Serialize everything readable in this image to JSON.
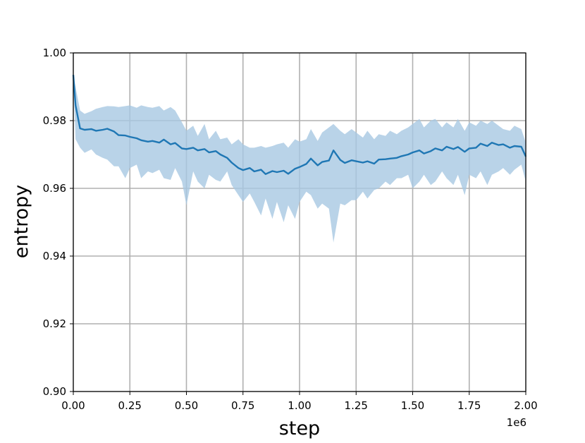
{
  "chart_data": {
    "type": "line",
    "title": "",
    "xlabel": "step",
    "ylabel": "entropy",
    "x_multiplier_label": "1e6",
    "xlim": [
      0,
      2
    ],
    "ylim": [
      0.9,
      1.0
    ],
    "xticks": [
      "0.00",
      "0.25",
      "0.50",
      "0.75",
      "1.00",
      "1.25",
      "1.50",
      "1.75",
      "2.00"
    ],
    "yticks": [
      "0.90",
      "0.92",
      "0.94",
      "0.96",
      "0.98",
      "1.00"
    ],
    "grid": true,
    "legend": "none",
    "colors": {
      "line": "#1f77b4",
      "band": "#a8c8e2",
      "grid": "#b0b0b0",
      "axes": "#000000"
    },
    "series": [
      {
        "x": [
          0.0,
          0.01,
          0.03,
          0.05,
          0.08,
          0.1,
          0.13,
          0.15,
          0.18,
          0.2,
          0.23,
          0.25,
          0.28,
          0.3,
          0.33,
          0.35,
          0.38,
          0.4,
          0.43,
          0.45,
          0.48,
          0.5,
          0.53,
          0.55,
          0.58,
          0.6,
          0.63,
          0.65,
          0.68,
          0.7,
          0.73,
          0.75,
          0.78,
          0.8,
          0.83,
          0.85,
          0.88,
          0.9,
          0.93,
          0.95,
          0.98,
          1.0,
          1.03,
          1.05,
          1.08,
          1.1,
          1.13,
          1.15,
          1.18,
          1.2,
          1.23,
          1.25,
          1.28,
          1.3,
          1.33,
          1.35,
          1.38,
          1.4,
          1.43,
          1.45,
          1.48,
          1.5,
          1.53,
          1.55,
          1.58,
          1.6,
          1.63,
          1.65,
          1.68,
          1.7,
          1.73,
          1.75,
          1.78,
          1.8,
          1.83,
          1.85,
          1.88,
          1.9,
          1.93,
          1.95,
          1.98,
          2.0
        ],
        "mean": [
          0.9935,
          0.9845,
          0.9777,
          0.9773,
          0.9775,
          0.977,
          0.9773,
          0.9776,
          0.9768,
          0.9757,
          0.9756,
          0.9752,
          0.9748,
          0.9742,
          0.9738,
          0.974,
          0.9735,
          0.9744,
          0.973,
          0.9734,
          0.9718,
          0.9716,
          0.972,
          0.9712,
          0.9716,
          0.9706,
          0.971,
          0.97,
          0.969,
          0.9676,
          0.966,
          0.9654,
          0.966,
          0.965,
          0.9655,
          0.9642,
          0.9651,
          0.9648,
          0.9652,
          0.9643,
          0.9658,
          0.9663,
          0.9672,
          0.9688,
          0.9668,
          0.9678,
          0.9682,
          0.9712,
          0.9684,
          0.9675,
          0.9683,
          0.968,
          0.9676,
          0.968,
          0.9673,
          0.9685,
          0.9686,
          0.9688,
          0.969,
          0.9695,
          0.97,
          0.9706,
          0.9712,
          0.9703,
          0.971,
          0.9718,
          0.9712,
          0.9723,
          0.9716,
          0.9722,
          0.9708,
          0.9718,
          0.972,
          0.9732,
          0.9725,
          0.9735,
          0.9728,
          0.973,
          0.972,
          0.9725,
          0.9723,
          0.9694
        ],
        "upper": [
          0.9935,
          0.99,
          0.983,
          0.982,
          0.9828,
          0.9835,
          0.984,
          0.9843,
          0.9842,
          0.984,
          0.9843,
          0.9845,
          0.9838,
          0.9845,
          0.984,
          0.9838,
          0.9843,
          0.983,
          0.984,
          0.983,
          0.9795,
          0.977,
          0.9785,
          0.9755,
          0.979,
          0.9745,
          0.977,
          0.9745,
          0.975,
          0.973,
          0.9745,
          0.973,
          0.972,
          0.972,
          0.9725,
          0.972,
          0.9725,
          0.973,
          0.9735,
          0.972,
          0.9745,
          0.9738,
          0.9745,
          0.9775,
          0.974,
          0.9765,
          0.978,
          0.979,
          0.977,
          0.976,
          0.9775,
          0.9765,
          0.975,
          0.977,
          0.9745,
          0.976,
          0.9755,
          0.977,
          0.976,
          0.977,
          0.978,
          0.979,
          0.9805,
          0.978,
          0.98,
          0.9805,
          0.978,
          0.9795,
          0.978,
          0.9805,
          0.977,
          0.9795,
          0.9785,
          0.98,
          0.979,
          0.98,
          0.9785,
          0.9775,
          0.977,
          0.9785,
          0.9775,
          0.9735
        ],
        "lower": [
          0.9935,
          0.9745,
          0.972,
          0.9705,
          0.9715,
          0.97,
          0.969,
          0.9685,
          0.9665,
          0.9665,
          0.963,
          0.966,
          0.967,
          0.963,
          0.965,
          0.9645,
          0.9655,
          0.963,
          0.9625,
          0.966,
          0.962,
          0.955,
          0.965,
          0.962,
          0.96,
          0.964,
          0.9625,
          0.962,
          0.965,
          0.961,
          0.958,
          0.956,
          0.9585,
          0.956,
          0.952,
          0.957,
          0.951,
          0.956,
          0.95,
          0.955,
          0.951,
          0.956,
          0.959,
          0.958,
          0.954,
          0.9555,
          0.954,
          0.944,
          0.9555,
          0.955,
          0.9565,
          0.9565,
          0.959,
          0.957,
          0.9595,
          0.96,
          0.962,
          0.961,
          0.963,
          0.963,
          0.964,
          0.96,
          0.962,
          0.964,
          0.961,
          0.962,
          0.965,
          0.963,
          0.961,
          0.964,
          0.958,
          0.964,
          0.963,
          0.965,
          0.961,
          0.964,
          0.965,
          0.966,
          0.964,
          0.9655,
          0.967,
          0.962
        ]
      }
    ]
  }
}
